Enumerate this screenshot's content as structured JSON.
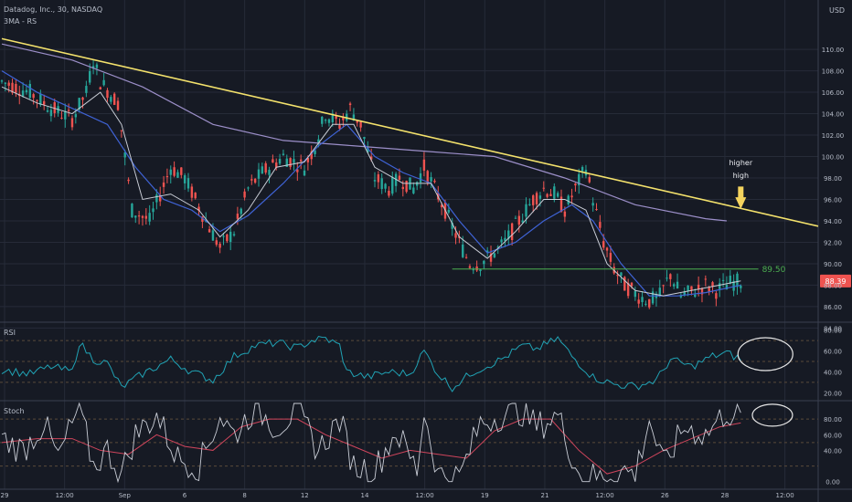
{
  "header": {
    "symbol": "Datadog, Inc., 30, NASDAQ",
    "indicator": "3MA - RS"
  },
  "currency": "USD",
  "panes": {
    "rsi_title": "RSI",
    "stoch_title": "Stoch"
  },
  "colors": {
    "background": "#161a24",
    "grid": "#262b38",
    "up": "#26a69a",
    "down": "#ef5350",
    "trendline": "#f4e26c",
    "support": "#4caf50",
    "ma_blue": "#3f63d6",
    "ma_purple": "#9c8fc9",
    "ma_white": "#c9cdd6",
    "rsi": "#20a3b5",
    "stoch_k": "#c9cdd6",
    "stoch_d": "#d0455c",
    "price_tag": "#ef5350",
    "arrow": "#f4d35e"
  },
  "annotations": {
    "support_value": "89.50",
    "higher_high": [
      "higher",
      "high"
    ],
    "last_price": "88.39"
  },
  "chart_data": [
    {
      "type": "candlestick",
      "title": "Datadog, Inc., 30, NASDAQ",
      "ylim": [
        84,
        112
      ],
      "y_ticks": [
        "110.00",
        "108.00",
        "106.00",
        "104.00",
        "102.00",
        "100.00",
        "98.00",
        "96.00",
        "94.00",
        "92.00",
        "90.00",
        "88.00",
        "86.00",
        "84.00"
      ],
      "x_ticks": [
        "29",
        "12:00",
        "Sep",
        "6",
        "8",
        "12",
        "14",
        "12:00",
        "19",
        "21",
        "12:00",
        "26",
        "28",
        "12:00"
      ],
      "price_path": [
        [
          0,
          107
        ],
        [
          8,
          106
        ],
        [
          14,
          104.5
        ],
        [
          20,
          103.5
        ],
        [
          24,
          106
        ],
        [
          26,
          109
        ],
        [
          28,
          107
        ],
        [
          33,
          105
        ],
        [
          37,
          95
        ],
        [
          42,
          94
        ],
        [
          48,
          99
        ],
        [
          52,
          98
        ],
        [
          58,
          94
        ],
        [
          62,
          91.5
        ],
        [
          66,
          93
        ],
        [
          70,
          97
        ],
        [
          74,
          98.5
        ],
        [
          80,
          100
        ],
        [
          86,
          99
        ],
        [
          89,
          101
        ],
        [
          92,
          104
        ],
        [
          96,
          103
        ],
        [
          99,
          104.5
        ],
        [
          102,
          103
        ],
        [
          106,
          98
        ],
        [
          110,
          97
        ],
        [
          113,
          98
        ],
        [
          117,
          97
        ],
        [
          120,
          99
        ],
        [
          123,
          97
        ],
        [
          126,
          95
        ],
        [
          130,
          92
        ],
        [
          133,
          90
        ],
        [
          136,
          90
        ],
        [
          140,
          91
        ],
        [
          143,
          92
        ],
        [
          147,
          94
        ],
        [
          151,
          96
        ],
        [
          154,
          97
        ],
        [
          157,
          96.5
        ],
        [
          160,
          95
        ],
        [
          163,
          97
        ],
        [
          166,
          99
        ],
        [
          168,
          96
        ],
        [
          171,
          92
        ],
        [
          174,
          89.5
        ],
        [
          177,
          88
        ],
        [
          181,
          87
        ],
        [
          184,
          86.5
        ],
        [
          187,
          87
        ],
        [
          190,
          89
        ],
        [
          193,
          87
        ],
        [
          197,
          87.5
        ],
        [
          200,
          88
        ],
        [
          203,
          87.5
        ],
        [
          207,
          88.2
        ],
        [
          210,
          88.4
        ]
      ],
      "ma_blue": [
        [
          0,
          108
        ],
        [
          10,
          106
        ],
        [
          20,
          104.5
        ],
        [
          30,
          103
        ],
        [
          38,
          99
        ],
        [
          46,
          96
        ],
        [
          54,
          95
        ],
        [
          62,
          93
        ],
        [
          70,
          94.5
        ],
        [
          80,
          97.5
        ],
        [
          90,
          101
        ],
        [
          98,
          103
        ],
        [
          106,
          100
        ],
        [
          114,
          98.5
        ],
        [
          122,
          97.5
        ],
        [
          130,
          94
        ],
        [
          138,
          91
        ],
        [
          146,
          92
        ],
        [
          154,
          94
        ],
        [
          162,
          95.5
        ],
        [
          168,
          94
        ],
        [
          176,
          90
        ],
        [
          184,
          87
        ],
        [
          192,
          87
        ],
        [
          200,
          87.3
        ],
        [
          210,
          88
        ]
      ],
      "ma_purple": [
        [
          0,
          110.5
        ],
        [
          20,
          109
        ],
        [
          40,
          106.5
        ],
        [
          60,
          103
        ],
        [
          80,
          101.5
        ],
        [
          100,
          101
        ],
        [
          120,
          100.5
        ],
        [
          140,
          100
        ],
        [
          160,
          98
        ],
        [
          180,
          95.5
        ],
        [
          200,
          94.2
        ],
        [
          206,
          94
        ]
      ],
      "ma_white": [
        [
          0,
          106.5
        ],
        [
          10,
          105
        ],
        [
          20,
          104
        ],
        [
          28,
          106
        ],
        [
          34,
          103
        ],
        [
          40,
          96
        ],
        [
          48,
          96.5
        ],
        [
          56,
          95
        ],
        [
          62,
          92.5
        ],
        [
          70,
          95
        ],
        [
          78,
          99
        ],
        [
          86,
          99.5
        ],
        [
          94,
          103
        ],
        [
          100,
          103
        ],
        [
          106,
          99
        ],
        [
          114,
          97.5
        ],
        [
          122,
          97.5
        ],
        [
          130,
          92.5
        ],
        [
          138,
          90.5
        ],
        [
          146,
          93
        ],
        [
          154,
          96
        ],
        [
          160,
          96
        ],
        [
          166,
          95
        ],
        [
          172,
          90
        ],
        [
          180,
          87.5
        ],
        [
          188,
          87
        ],
        [
          196,
          87.5
        ],
        [
          204,
          88
        ],
        [
          210,
          88.4
        ]
      ],
      "trendline": [
        [
          0,
          111
        ],
        [
          232,
          93.5
        ]
      ],
      "support_level": 89.5,
      "last_price": 88.39,
      "higher_high_index": 210
    },
    {
      "type": "line",
      "title": "RSI",
      "ylim": [
        15,
        85
      ],
      "y_ticks": [
        "80.00",
        "60.00",
        "40.00",
        "20.00"
      ],
      "bands": [
        70,
        50,
        30
      ],
      "values": [
        [
          0,
          42
        ],
        [
          8,
          38
        ],
        [
          14,
          45
        ],
        [
          20,
          40
        ],
        [
          22,
          68
        ],
        [
          26,
          52
        ],
        [
          30,
          48
        ],
        [
          34,
          25
        ],
        [
          40,
          38
        ],
        [
          48,
          52
        ],
        [
          54,
          40
        ],
        [
          60,
          32
        ],
        [
          66,
          55
        ],
        [
          72,
          65
        ],
        [
          78,
          68
        ],
        [
          84,
          63
        ],
        [
          88,
          70
        ],
        [
          92,
          72
        ],
        [
          96,
          65
        ],
        [
          98,
          40
        ],
        [
          104,
          35
        ],
        [
          110,
          40
        ],
        [
          116,
          38
        ],
        [
          120,
          60
        ],
        [
          124,
          38
        ],
        [
          128,
          25
        ],
        [
          134,
          40
        ],
        [
          142,
          52
        ],
        [
          148,
          65
        ],
        [
          152,
          62
        ],
        [
          158,
          72
        ],
        [
          162,
          55
        ],
        [
          168,
          35
        ],
        [
          174,
          28
        ],
        [
          180,
          26
        ],
        [
          186,
          32
        ],
        [
          190,
          52
        ],
        [
          196,
          45
        ],
        [
          202,
          55
        ],
        [
          206,
          58
        ],
        [
          210,
          52
        ]
      ]
    },
    {
      "type": "line",
      "title": "Stoch",
      "ylim": [
        -5,
        100
      ],
      "y_ticks": [
        "80.00",
        "60.00",
        "40.00",
        "0.00"
      ],
      "bands": [
        80,
        50,
        20
      ],
      "series": [
        {
          "values": [
            [
              0,
              55
            ],
            [
              6,
              40
            ],
            [
              12,
              75
            ],
            [
              16,
              30
            ],
            [
              22,
              95
            ],
            [
              26,
              20
            ],
            [
              30,
              40
            ],
            [
              34,
              10
            ],
            [
              38,
              60
            ],
            [
              44,
              85
            ],
            [
              50,
              30
            ],
            [
              56,
              20
            ],
            [
              62,
              85
            ],
            [
              66,
              60
            ],
            [
              72,
              95
            ],
            [
              78,
              70
            ],
            [
              84,
              90
            ],
            [
              90,
              40
            ],
            [
              96,
              80
            ],
            [
              100,
              20
            ],
            [
              106,
              15
            ],
            [
              112,
              65
            ],
            [
              118,
              15
            ],
            [
              120,
              90
            ],
            [
              124,
              10
            ],
            [
              130,
              5
            ],
            [
              136,
              75
            ],
            [
              142,
              85
            ],
            [
              148,
              90
            ],
            [
              152,
              70
            ],
            [
              158,
              85
            ],
            [
              164,
              10
            ],
            [
              170,
              5
            ],
            [
              176,
              15
            ],
            [
              180,
              10
            ],
            [
              184,
              80
            ],
            [
              188,
              20
            ],
            [
              194,
              70
            ],
            [
              200,
              60
            ],
            [
              206,
              90
            ],
            [
              210,
              80
            ]
          ]
        },
        {
          "values": [
            [
              0,
              50
            ],
            [
              10,
              55
            ],
            [
              20,
              55
            ],
            [
              28,
              40
            ],
            [
              36,
              35
            ],
            [
              44,
              60
            ],
            [
              52,
              45
            ],
            [
              60,
              40
            ],
            [
              68,
              70
            ],
            [
              76,
              80
            ],
            [
              84,
              80
            ],
            [
              92,
              60
            ],
            [
              100,
              45
            ],
            [
              108,
              30
            ],
            [
              116,
              40
            ],
            [
              124,
              35
            ],
            [
              132,
              30
            ],
            [
              140,
              65
            ],
            [
              148,
              80
            ],
            [
              156,
              80
            ],
            [
              164,
              40
            ],
            [
              172,
              10
            ],
            [
              180,
              20
            ],
            [
              188,
              40
            ],
            [
              196,
              55
            ],
            [
              204,
              70
            ],
            [
              210,
              75
            ]
          ]
        }
      ]
    }
  ]
}
